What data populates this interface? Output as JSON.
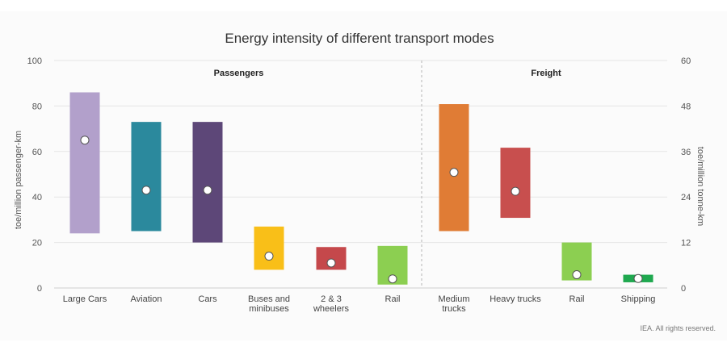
{
  "chart_data": {
    "type": "range-bar",
    "title": "Energy intensity of different transport modes",
    "ylabel_left": "toe/million passenger-km",
    "ylabel_right": "toe/million tonne-km",
    "ylim_left": [
      0,
      100
    ],
    "yticks_left": [
      0,
      20,
      40,
      60,
      80,
      100
    ],
    "ylim_right": [
      0,
      60
    ],
    "yticks_right": [
      0,
      12,
      24,
      36,
      48,
      60
    ],
    "grid": true,
    "groups": [
      {
        "name": "Passengers",
        "axis": "left",
        "items": [
          {
            "label": [
              "Large Cars"
            ],
            "low": 24,
            "high": 86,
            "point": 65,
            "color": "#b2a0cb"
          },
          {
            "label": [
              "Aviation"
            ],
            "low": 25,
            "high": 73,
            "point": 43,
            "color": "#2b899d"
          },
          {
            "label": [
              "Cars"
            ],
            "low": 20,
            "high": 73,
            "point": 43,
            "color": "#5d4778"
          },
          {
            "label": [
              "Buses and",
              "minibuses"
            ],
            "low": 8,
            "high": 27,
            "point": 14,
            "color": "#f9bf18"
          },
          {
            "label": [
              "2 & 3",
              "wheelers"
            ],
            "low": 8,
            "high": 18,
            "point": 11,
            "color": "#c5484b"
          },
          {
            "label": [
              "Rail"
            ],
            "low": 1.5,
            "high": 18.5,
            "point": 4,
            "color": "#8ccf51"
          }
        ]
      },
      {
        "name": "Freight",
        "axis": "right",
        "items": [
          {
            "label": [
              "Medium",
              "trucks"
            ],
            "low": 15,
            "high": 48.5,
            "point": 30.5,
            "color": "#e07c35"
          },
          {
            "label": [
              "Heavy trucks"
            ],
            "low": 18.5,
            "high": 37,
            "point": 25.5,
            "color": "#c84f4e"
          },
          {
            "label": [
              "Rail"
            ],
            "low": 2,
            "high": 12,
            "point": 3.5,
            "color": "#8ccf51"
          },
          {
            "label": [
              "Shipping"
            ],
            "low": 1.5,
            "high": 3.5,
            "point": 2.5,
            "color": "#1fa84f"
          }
        ]
      }
    ]
  },
  "credit": "IEA. All rights reserved."
}
